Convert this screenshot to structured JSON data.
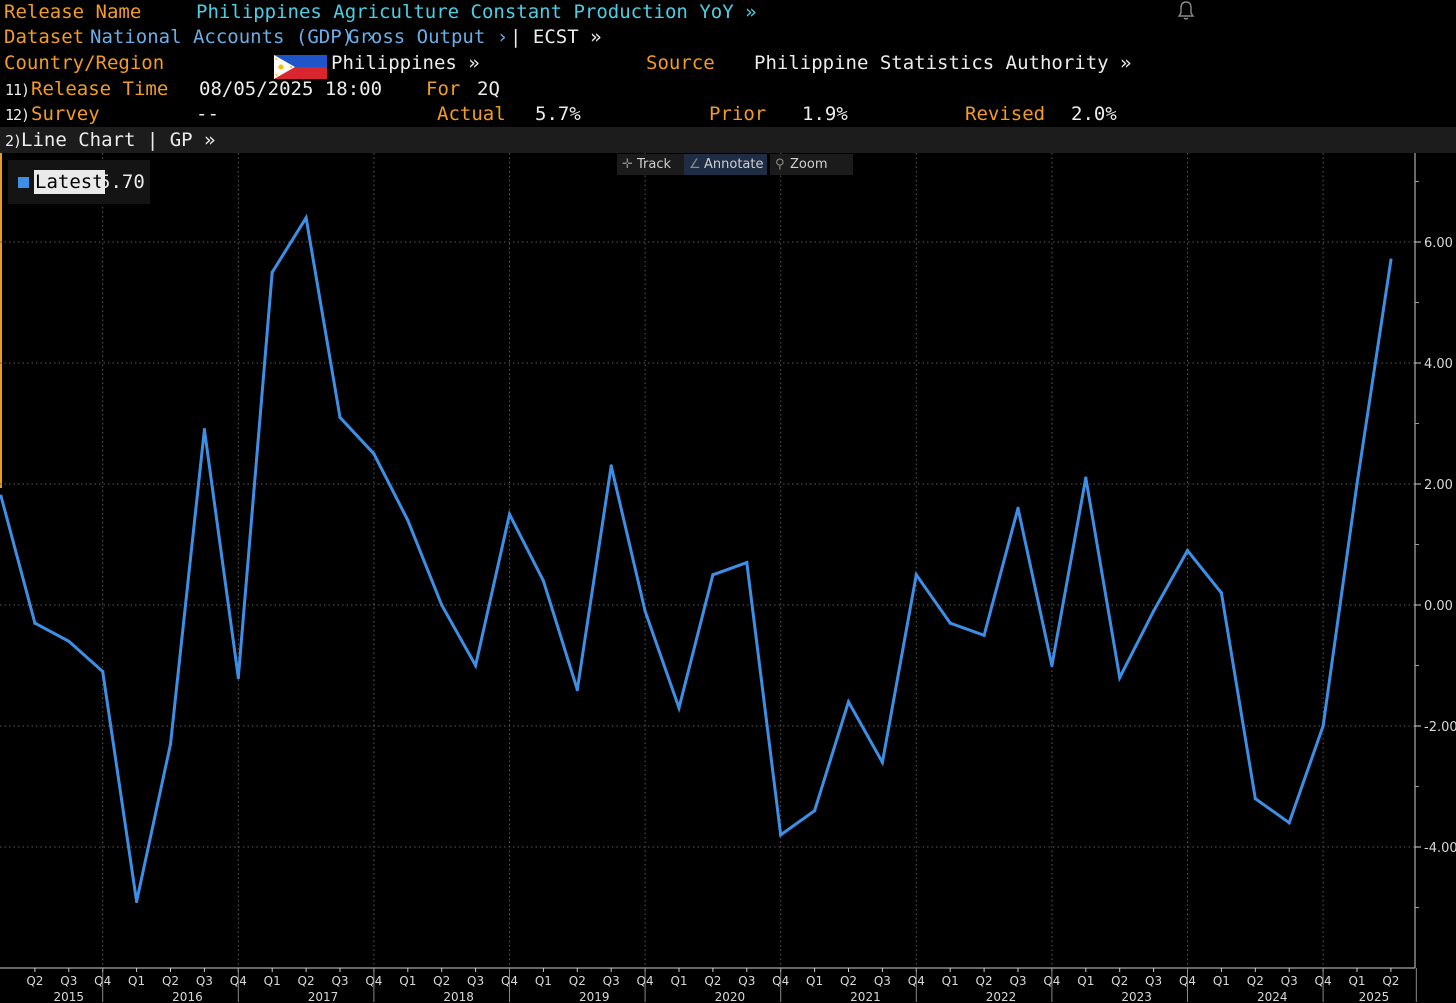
{
  "header": {
    "release_name_label": "Release Name",
    "release_name": "Philippines Agriculture Constant Production YoY »",
    "dataset_label": "Dataset",
    "dataset_path_1": "National Accounts (GDP) ›",
    "dataset_path_2": "Gross Output ›",
    "dataset_ecst": "| ECST »",
    "country_label": "Country/Region",
    "country": "Philippines »",
    "source_label": "Source",
    "source": "Philippine Statistics Authority »",
    "release_time_num": "11)",
    "release_time_label": "Release Time",
    "release_time": "08/05/2025 18:00",
    "for_label": "For",
    "for_value": "2Q",
    "survey_num": "12)",
    "survey_label": "Survey",
    "survey_value": "--",
    "actual_label": "Actual",
    "actual_value": "5.7%",
    "prior_label": "Prior",
    "prior_value": "1.9%",
    "revised_label": "Revised",
    "revised_value": "2.0%"
  },
  "chart_bar": {
    "num": "2)",
    "label": "Line Chart | GP »"
  },
  "toolbar": {
    "track": "Track",
    "annotate": "Annotate",
    "zoom": "Zoom"
  },
  "legend": {
    "label": "Latest",
    "value": "5.70"
  },
  "colors": {
    "accent_orange": "#f39c23",
    "title_cyan": "#49d0e6",
    "link_blue": "#6aaee8",
    "series_line": "#3d8fe6",
    "background": "#000000"
  },
  "chart_data": {
    "type": "line",
    "title": "",
    "xlabel": "",
    "ylabel": "",
    "ylim": [
      -6,
      7.5
    ],
    "yticks": [
      "6.00",
      "4.00",
      "2.00",
      "0.00",
      "-2.00",
      "-4.00"
    ],
    "ytick_values": [
      6,
      4,
      2,
      0,
      -2,
      -4
    ],
    "grid": true,
    "quarter_labels": [
      "Q2",
      "Q3",
      "Q4",
      "Q1",
      "Q2",
      "Q3",
      "Q4",
      "Q1",
      "Q2",
      "Q3",
      "Q4",
      "Q1",
      "Q2",
      "Q3",
      "Q4",
      "Q1",
      "Q2",
      "Q3",
      "Q4",
      "Q1",
      "Q2",
      "Q3",
      "Q4",
      "Q1",
      "Q2",
      "Q3",
      "Q4",
      "Q1",
      "Q2",
      "Q3",
      "Q4",
      "Q1",
      "Q2",
      "Q3",
      "Q4",
      "Q1",
      "Q2",
      "Q3",
      "Q4",
      "Q1",
      "Q2"
    ],
    "year_labels": [
      "2015",
      "2016",
      "2017",
      "2018",
      "2019",
      "2020",
      "2021",
      "2022",
      "2023",
      "2024",
      "2025"
    ],
    "x": [
      "2015-Q1",
      "2015-Q2",
      "2015-Q3",
      "2015-Q4",
      "2016-Q1",
      "2016-Q2",
      "2016-Q3",
      "2016-Q4",
      "2017-Q1",
      "2017-Q2",
      "2017-Q3",
      "2017-Q4",
      "2018-Q1",
      "2018-Q2",
      "2018-Q3",
      "2018-Q4",
      "2019-Q1",
      "2019-Q2",
      "2019-Q3",
      "2019-Q4",
      "2020-Q1",
      "2020-Q2",
      "2020-Q3",
      "2020-Q4",
      "2021-Q1",
      "2021-Q2",
      "2021-Q3",
      "2021-Q4",
      "2022-Q1",
      "2022-Q2",
      "2022-Q3",
      "2022-Q4",
      "2023-Q1",
      "2023-Q2",
      "2023-Q3",
      "2023-Q4",
      "2024-Q1",
      "2024-Q2",
      "2024-Q3",
      "2024-Q4",
      "2025-Q1",
      "2025-Q2"
    ],
    "series": [
      {
        "name": "Latest",
        "values": [
          1.8,
          -0.3,
          -0.6,
          -1.1,
          -4.9,
          -2.3,
          2.9,
          -1.2,
          5.5,
          6.4,
          3.1,
          2.5,
          1.4,
          0.0,
          -1.0,
          1.5,
          0.4,
          -1.4,
          2.3,
          -0.1,
          -1.7,
          0.5,
          0.7,
          -3.8,
          -3.4,
          -1.6,
          -2.6,
          0.5,
          -0.3,
          -0.5,
          1.6,
          -1.0,
          2.1,
          -1.2,
          -0.1,
          0.9,
          0.2,
          -3.2,
          -3.6,
          -2.0,
          2.0,
          5.7
        ]
      }
    ]
  }
}
